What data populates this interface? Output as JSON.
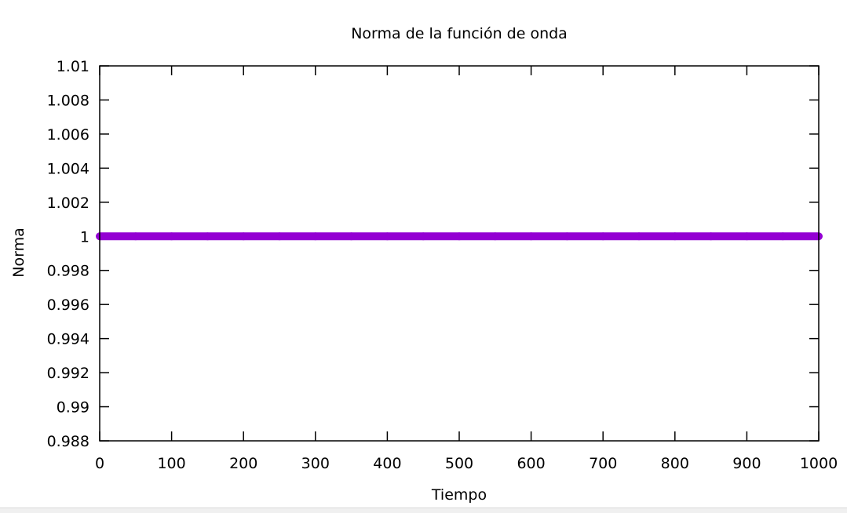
{
  "chart_data": {
    "type": "line",
    "title": "Norma de la función de onda",
    "xlabel": "Tiempo",
    "ylabel": "Norma",
    "xlim": [
      0,
      1000
    ],
    "ylim": [
      0.988,
      1.01
    ],
    "x_ticks": [
      0,
      100,
      200,
      300,
      400,
      500,
      600,
      700,
      800,
      900,
      1000
    ],
    "x_tick_labels": [
      "0",
      "100",
      "200",
      "300",
      "400",
      "500",
      "600",
      "700",
      "800",
      "900",
      "1000"
    ],
    "y_ticks": [
      0.988,
      0.99,
      0.992,
      0.994,
      0.996,
      0.998,
      1,
      1.002,
      1.004,
      1.006,
      1.008,
      1.01
    ],
    "y_tick_labels": [
      "0.988",
      "0.99",
      "0.992",
      "0.994",
      "0.996",
      "0.998",
      "1",
      "1.002",
      "1.004",
      "1.006",
      "1.008",
      "1.01"
    ],
    "grid": false,
    "legend": "none",
    "series": [
      {
        "color": "#9400d3",
        "x": [
          0,
          50,
          100,
          150,
          200,
          250,
          300,
          350,
          400,
          450,
          500,
          550,
          600,
          650,
          700,
          750,
          800,
          850,
          900,
          950,
          1000
        ],
        "y": [
          1,
          1,
          1,
          1,
          1,
          1,
          1,
          1,
          1,
          1,
          1,
          1,
          1,
          1,
          1,
          1,
          1,
          1,
          1,
          1,
          1
        ]
      }
    ]
  }
}
